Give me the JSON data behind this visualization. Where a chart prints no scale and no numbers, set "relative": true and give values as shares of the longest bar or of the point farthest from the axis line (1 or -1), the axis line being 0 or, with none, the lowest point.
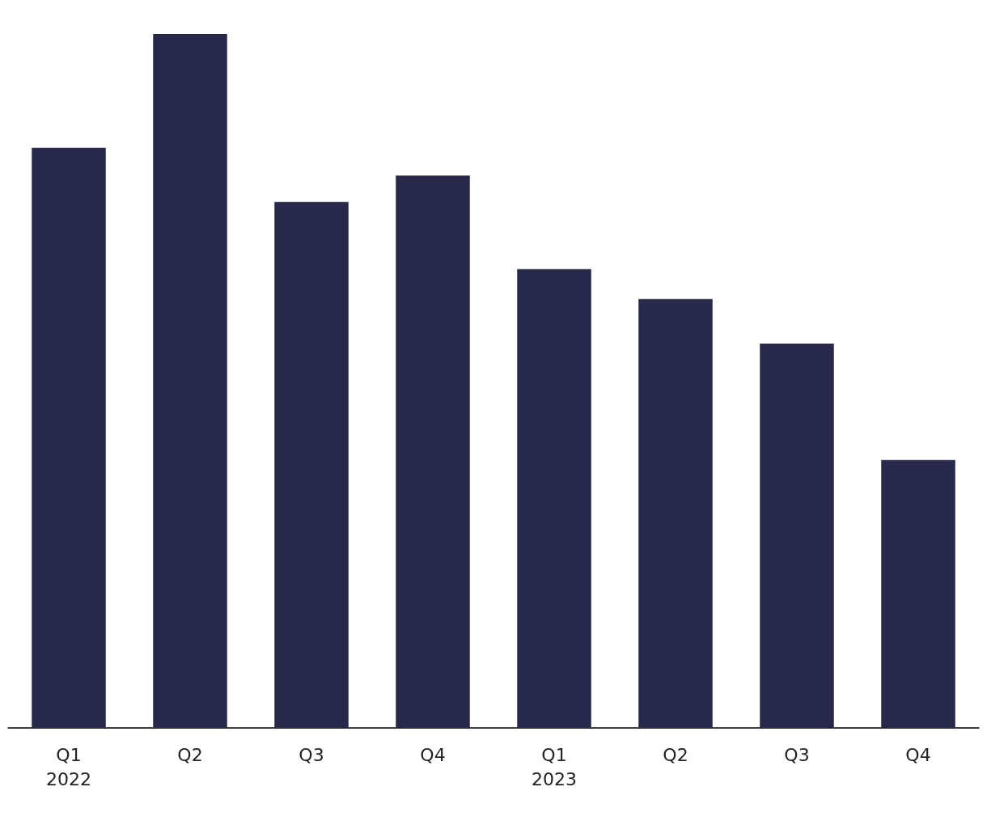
{
  "chart_data": {
    "type": "bar",
    "relative": true,
    "categories": [
      "Q1\n2022",
      "Q2",
      "Q3",
      "Q4",
      "Q1\n2023",
      "Q2",
      "Q3",
      "Q4"
    ],
    "values": [
      0.836,
      1,
      0.758,
      0.796,
      0.661,
      0.618,
      0.554,
      0.386
    ],
    "color": "#28284b"
  }
}
